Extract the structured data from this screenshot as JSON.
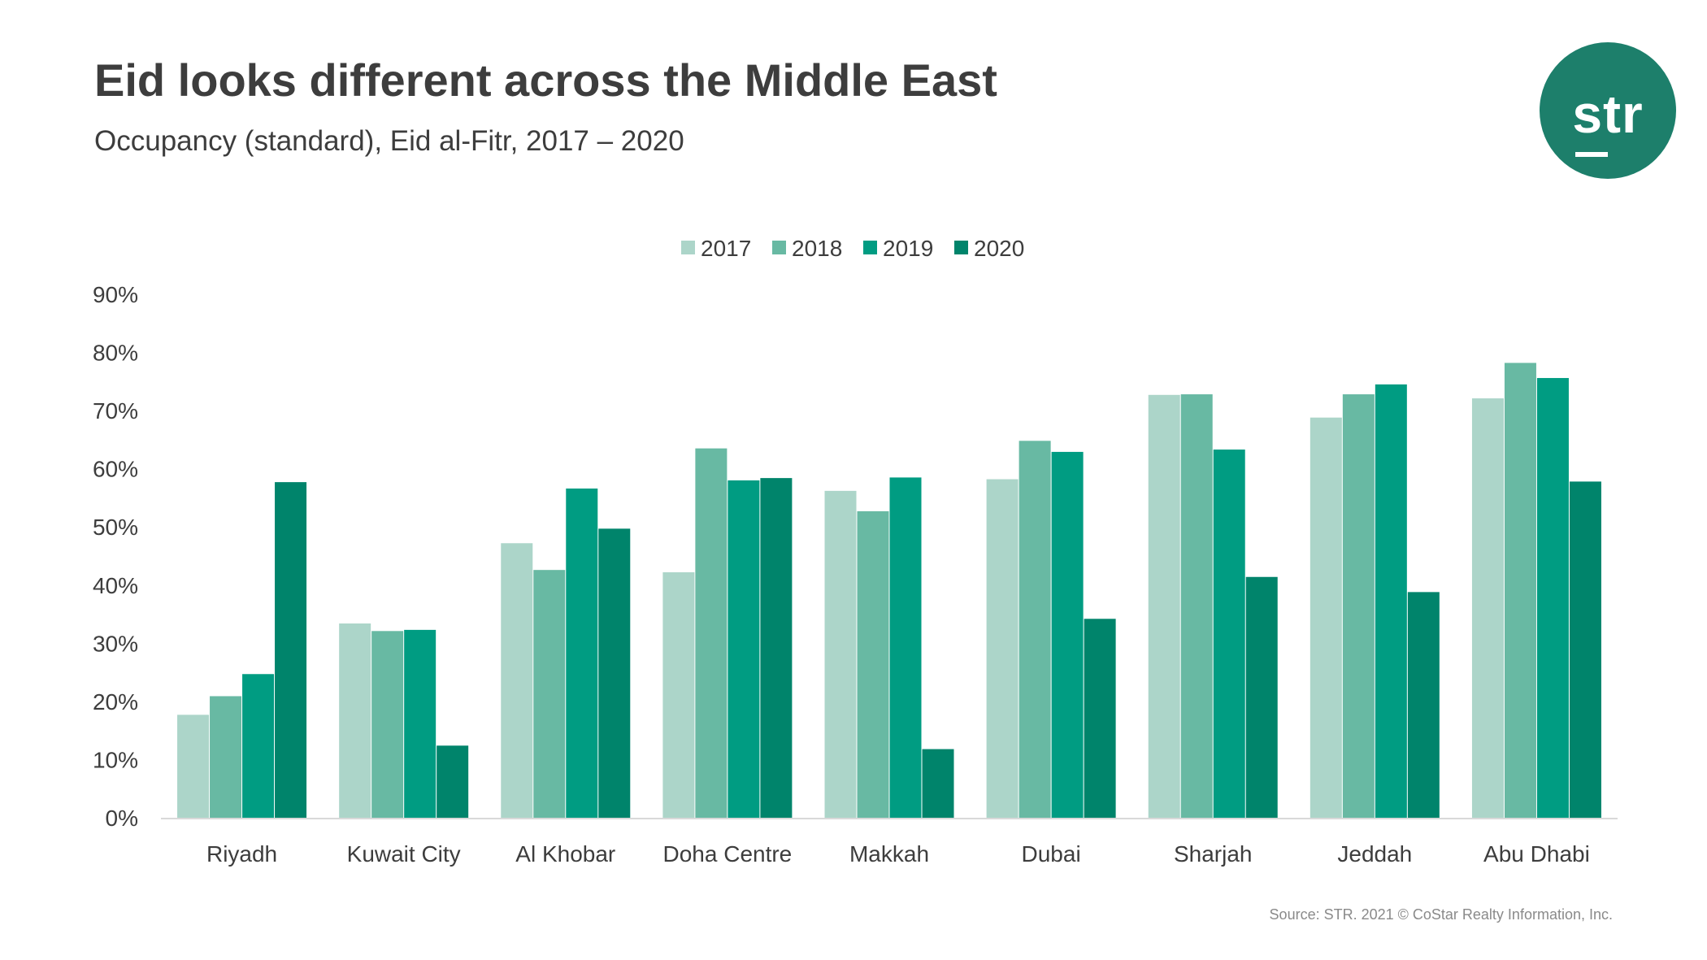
{
  "header": {
    "title": "Eid looks different across the Middle East",
    "subtitle": "Occupancy (standard), Eid al-Fitr, 2017 – 2020"
  },
  "logo": {
    "text": "str",
    "color": "#1d7f6b"
  },
  "footer": {
    "source": "Source: STR. 2021 © CoStar Realty Information, Inc."
  },
  "chart_data": {
    "type": "bar",
    "categories": [
      "Riyadh",
      "Kuwait City",
      "Al Khobar",
      "Doha Centre",
      "Makkah",
      "Dubai",
      "Sharjah",
      "Jeddah",
      "Abu Dhabi"
    ],
    "series": [
      {
        "name": "2017",
        "color": "#acd5c9",
        "values": [
          17.7,
          33.4,
          47.2,
          42.2,
          56.2,
          58.2,
          72.7,
          68.8,
          72.1
        ]
      },
      {
        "name": "2018",
        "color": "#68b9a3",
        "values": [
          20.9,
          32.1,
          42.6,
          63.5,
          52.7,
          64.8,
          72.8,
          72.8,
          78.2
        ]
      },
      {
        "name": "2019",
        "color": "#009c82",
        "values": [
          24.7,
          32.3,
          56.6,
          58.0,
          58.5,
          62.9,
          63.3,
          74.5,
          75.6
        ]
      },
      {
        "name": "2020",
        "color": "#00846b",
        "values": [
          57.7,
          12.4,
          49.7,
          58.4,
          11.8,
          34.2,
          41.4,
          38.8,
          57.8
        ]
      }
    ],
    "ylim": [
      0,
      90
    ],
    "yticks": [
      0,
      10,
      20,
      30,
      40,
      50,
      60,
      70,
      80,
      90
    ],
    "ytick_labels": [
      "0%",
      "10%",
      "20%",
      "30%",
      "40%",
      "50%",
      "60%",
      "70%",
      "80%",
      "90%"
    ],
    "legend_position": "top-center",
    "grid": false
  }
}
